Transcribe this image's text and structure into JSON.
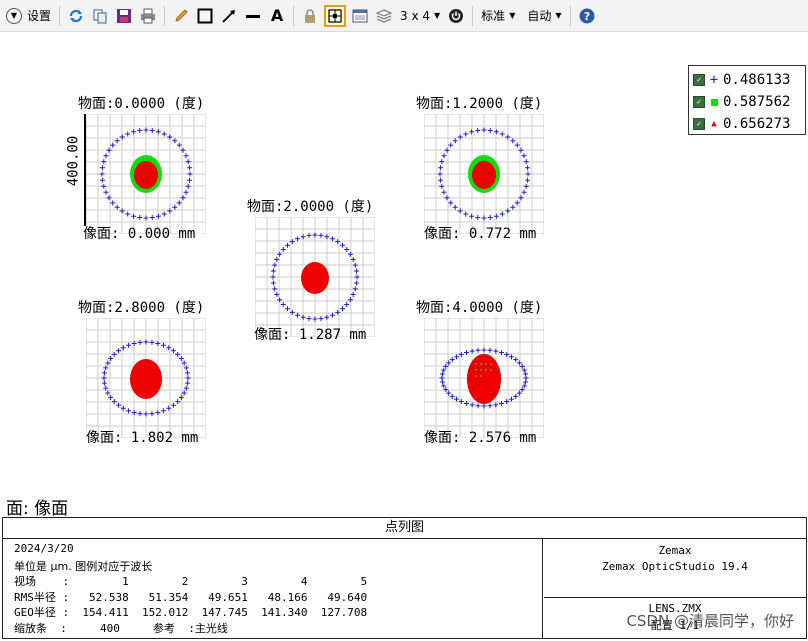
{
  "toolbar": {
    "settings_label": "设置",
    "layout_label": "3 x 4",
    "standard_label": "标准",
    "auto_label": "自动"
  },
  "legend": [
    {
      "value": "0.486133",
      "marker": "plus",
      "color": "#2020d0"
    },
    {
      "value": "0.587562",
      "marker": "square",
      "color": "#10dd10"
    },
    {
      "value": "0.656273",
      "marker": "triangle",
      "color": "#ee0000"
    }
  ],
  "fields": [
    {
      "object": "物面:0.0000 (度)",
      "image": "像面: 0.000 mm"
    },
    {
      "object": "物面:1.2000 (度)",
      "image": "像面: 0.772 mm"
    },
    {
      "object": "物面:2.0000 (度)",
      "image": "像面: 1.287 mm"
    },
    {
      "object": "物面:2.8000 (度)",
      "image": "像面: 1.802 mm"
    },
    {
      "object": "物面:4.0000 (度)",
      "image": "像面: 2.576 mm"
    }
  ],
  "scale_label": "400.00",
  "surface_label": "面: 像面",
  "info": {
    "title": "点列图",
    "date": "2024/3/20",
    "unit_line": "单位是 µm. 图例对应于波长",
    "field_line": "视场    :        1        2        3        4        5",
    "rms_line": "RMS半径 :   52.538   51.354   49.651   48.166   49.640",
    "geo_line": "GEO半径 :  154.411  152.012  147.745  141.340  127.708",
    "scale_line": "缩放条  :     400     参考  :主光线",
    "company": "Zemax",
    "product": "Zemax OpticStudio 19.4",
    "file": "LENS.ZMX",
    "config": "配置 1/1"
  },
  "watermark": "CSDN @清晨同学，你好"
}
